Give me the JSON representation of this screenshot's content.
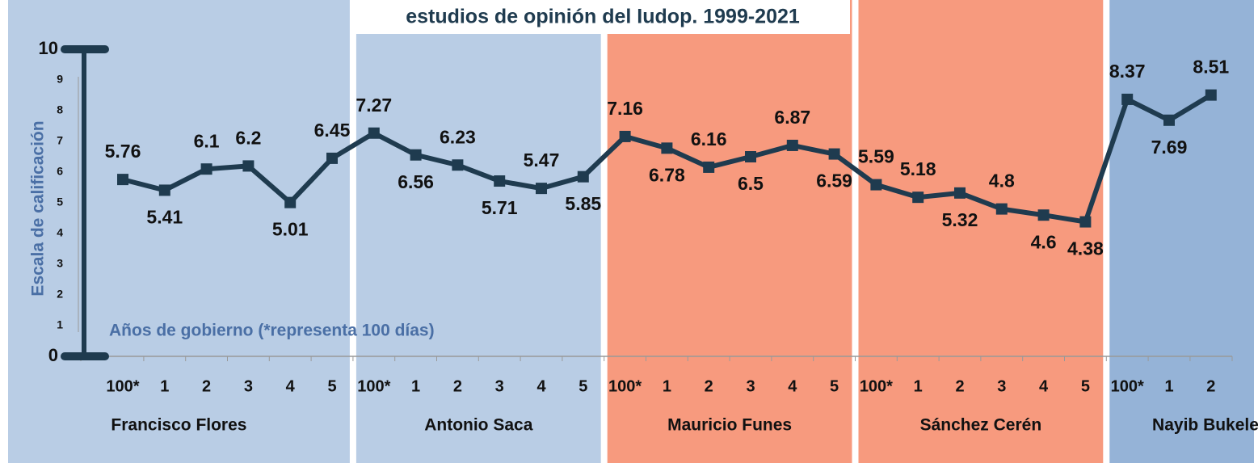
{
  "chart_data": {
    "type": "line",
    "title": "estudios de opinión del Iudop. 1999-2021",
    "y_label": "Escala de calificación",
    "annotation": "Años de gobierno (*representa 100 días)",
    "groups": [
      {
        "name": "Francisco Flores",
        "color": "#b9cde5",
        "categories": [
          "100*",
          "1",
          "2",
          "3",
          "4",
          "5"
        ]
      },
      {
        "name": "Antonio Saca",
        "color": "#b9cde5",
        "categories": [
          "100*",
          "1",
          "2",
          "3",
          "4",
          "5"
        ]
      },
      {
        "name": "Mauricio Funes",
        "color": "#f79a7e",
        "categories": [
          "100*",
          "1",
          "2",
          "3",
          "4",
          "5"
        ]
      },
      {
        "name": "Sánchez Cerén",
        "color": "#f79a7e",
        "categories": [
          "100*",
          "1",
          "2",
          "3",
          "4",
          "5"
        ]
      },
      {
        "name": "Nayib Bukele",
        "color": "#95b3d7",
        "categories": [
          "100*",
          "1",
          "2"
        ]
      }
    ],
    "series": [
      {
        "color": "#1f3b4f",
        "values": [
          5.76,
          5.41,
          6.1,
          6.2,
          5.01,
          6.45,
          7.27,
          6.56,
          6.23,
          5.71,
          5.47,
          5.85,
          7.16,
          6.78,
          6.16,
          6.5,
          6.87,
          6.59,
          5.59,
          5.18,
          5.32,
          4.8,
          4.6,
          4.38,
          8.37,
          7.69,
          8.51
        ]
      }
    ],
    "ylim": [
      0,
      10
    ],
    "yticks": [
      0,
      1,
      2,
      3,
      4,
      5,
      6,
      7,
      8,
      9,
      10
    ]
  }
}
